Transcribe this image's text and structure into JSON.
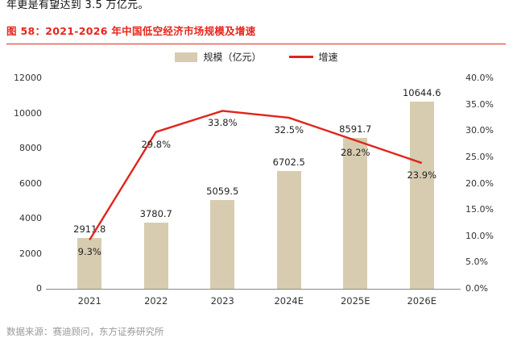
{
  "page": {
    "top_text": "年更是有望达到 3.5 万亿元。",
    "source_text": "数据来源：赛迪顾问，东方证券研究所"
  },
  "figure": {
    "label": "图 58：",
    "title": "2021-2026 年中国低空经济市场规模及增速"
  },
  "legend": {
    "bar_label": "规模（亿元）",
    "line_label": "增速"
  },
  "colors": {
    "title_red": "#e8251c",
    "bar_fill": "#d7ccb0",
    "line_red": "#e0251c",
    "axis_text": "#333333",
    "source_text": "#999999"
  },
  "chart_data": {
    "type": "bar+line",
    "title": "2021-2026 年中国低空经济市场规模及增速",
    "categories": [
      "2021",
      "2022",
      "2023",
      "2024E",
      "2025E",
      "2026E"
    ],
    "series": [
      {
        "name": "规模（亿元）",
        "type": "bar",
        "axis": "left",
        "values": [
          2911.8,
          3780.7,
          5059.5,
          6702.5,
          8591.7,
          10644.6
        ]
      },
      {
        "name": "增速",
        "type": "line",
        "axis": "right",
        "unit": "%",
        "values": [
          9.3,
          29.8,
          33.8,
          32.5,
          28.2,
          23.9
        ]
      }
    ],
    "left_axis": {
      "min": 0,
      "max": 12000,
      "step": 2000
    },
    "right_axis": {
      "min": 0,
      "max": 40,
      "step": 5,
      "unit": "%"
    },
    "grid": false,
    "legend_position": "top"
  }
}
